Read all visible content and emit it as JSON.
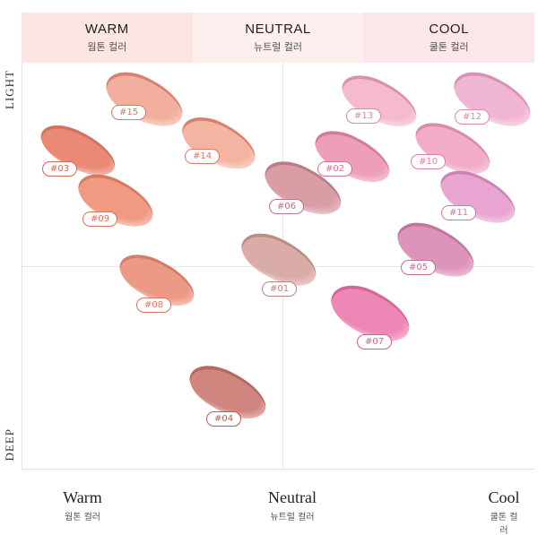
{
  "header": [
    {
      "en": "WARM",
      "ko": "웜톤 컬러"
    },
    {
      "en": "NEUTRAL",
      "ko": "뉴트럴 컬러"
    },
    {
      "en": "COOL",
      "ko": "쿨톤 컬러"
    }
  ],
  "axis": {
    "top": "LIGHT",
    "bottom": "DEEP"
  },
  "footer": [
    {
      "en": "Warm",
      "ko": "웜톤 컬러"
    },
    {
      "en": "Neutral",
      "ko": "뉴트럴 컬러"
    },
    {
      "en": "Cool",
      "ko": "쿨톤 컬러"
    }
  ],
  "swatches": [
    {
      "label": "#15",
      "color": "#f2ab98",
      "badge_color": "#d77a67"
    },
    {
      "label": "#14",
      "color": "#f3b09e",
      "badge_color": "#d77a67"
    },
    {
      "label": "#03",
      "color": "#e8846f",
      "badge_color": "#d06a55"
    },
    {
      "label": "#09",
      "color": "#f0957c",
      "badge_color": "#d5735c"
    },
    {
      "label": "#06",
      "color": "#d898a2",
      "badge_color": "#b87680"
    },
    {
      "label": "#13",
      "color": "#f5b7cb",
      "badge_color": "#d98aa6"
    },
    {
      "label": "#12",
      "color": "#efb2d1",
      "badge_color": "#d68bb2"
    },
    {
      "label": "#02",
      "color": "#eb99b8",
      "badge_color": "#d07495"
    },
    {
      "label": "#10",
      "color": "#f2a8c6",
      "badge_color": "#d783a6"
    },
    {
      "label": "#11",
      "color": "#e7a1d0",
      "badge_color": "#c97db0"
    },
    {
      "label": "#01",
      "color": "#d9a8a3",
      "badge_color": "#b88580"
    },
    {
      "label": "#05",
      "color": "#dc8fb8",
      "badge_color": "#c06f98"
    },
    {
      "label": "#08",
      "color": "#ec9580",
      "badge_color": "#d27662"
    },
    {
      "label": "#07",
      "color": "#ee80b3",
      "badge_color": "#d35f93"
    },
    {
      "label": "#04",
      "color": "#cf7f79",
      "badge_color": "#b2605a"
    }
  ]
}
